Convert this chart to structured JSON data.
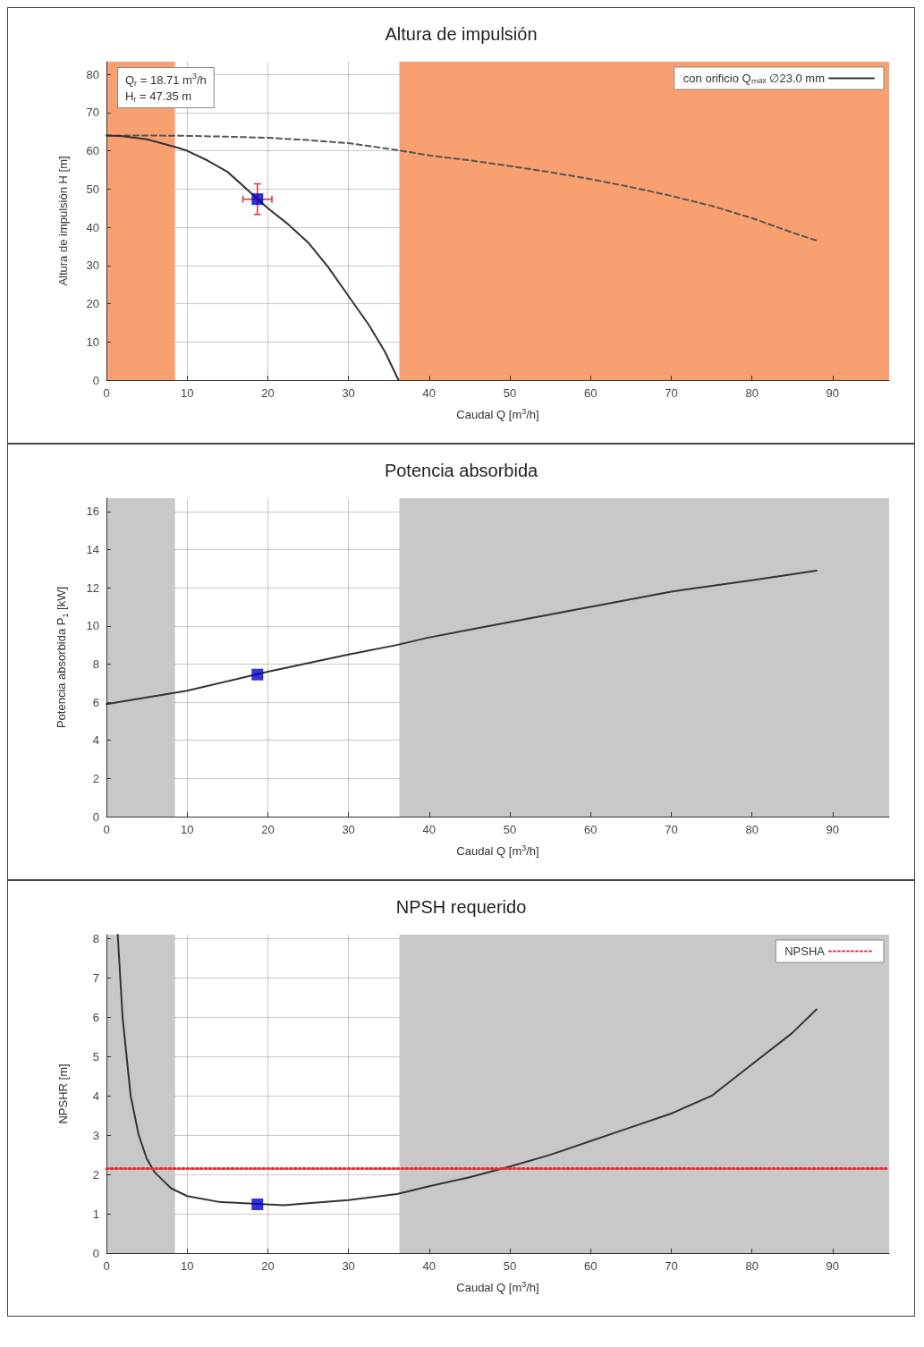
{
  "chart_data": [
    {
      "type": "line",
      "title": "Altura de impulsión",
      "xlabel": "Caudal Q [m$^{3}$/h]",
      "ylabel": "Altura de impulsión H [m]",
      "xlim": [
        0,
        97
      ],
      "ylim": [
        0,
        83.3
      ],
      "xticks": [
        0,
        10,
        20,
        30,
        40,
        50,
        60,
        70,
        80,
        90
      ],
      "yticks": [
        0,
        10,
        20,
        30,
        40,
        50,
        60,
        70,
        80
      ],
      "grid": true,
      "legend": "top right",
      "annotations": [
        "Q$_{r}$ = 18.71 m$^{3}$/h\nH$_{r}$ = 47.35 m"
      ],
      "bands": [
        {
          "axis": "x",
          "from": 0,
          "to": 8.5,
          "color": "#f9a070"
        },
        {
          "axis": "x",
          "from": 36.3,
          "to": 97,
          "color": "#f9a070"
        }
      ],
      "series": [
        {
          "color": "#555555",
          "line_style": "dashed",
          "marker": "none",
          "x": [
            0,
            5,
            10,
            15,
            20,
            25,
            30,
            36,
            40,
            45,
            50,
            55,
            60,
            65,
            70,
            75,
            80,
            85,
            88
          ],
          "values": [
            64,
            64,
            63.9,
            63.7,
            63.4,
            62.8,
            62,
            60.2,
            58.8,
            57.5,
            56,
            54.4,
            52.6,
            50.5,
            48.2,
            45.6,
            42.4,
            38.6,
            36.5
          ]
        },
        {
          "name": "con orificio Qₘₐₓ ∅23.0 mm",
          "color": "#333333",
          "line_style": "solid",
          "marker": "none",
          "x": [
            0,
            2,
            5,
            8.5,
            10,
            12.5,
            15,
            20,
            22.5,
            25,
            27.5,
            30,
            32.5,
            34.5,
            36.2
          ],
          "values": [
            64,
            63.8,
            63,
            61,
            60,
            57.5,
            54.5,
            45,
            40.8,
            36,
            29.5,
            22,
            14.5,
            7.5,
            0
          ]
        },
        {
          "type": "scatter",
          "color": "#0000cc",
          "marker": "square",
          "x": [
            18.71
          ],
          "values": [
            47.35
          ],
          "errors": [
            4
          ],
          "xerrors": [
            1.8
          ]
        }
      ]
    },
    {
      "type": "line",
      "title": "Potencia absorbida",
      "xlabel": "Caudal Q [m$^{3}$/h]",
      "ylabel": "Potencia absorbida P$_{1}$ [kW]",
      "xlim": [
        0,
        97
      ],
      "ylim": [
        0,
        16.7
      ],
      "xticks": [
        0,
        10,
        20,
        30,
        40,
        50,
        60,
        70,
        80,
        90
      ],
      "yticks": [
        0,
        2,
        4,
        6,
        8,
        10,
        12,
        14,
        16
      ],
      "grid": true,
      "bands": [
        {
          "axis": "x",
          "from": 0,
          "to": 8.5,
          "color": "#c8c8c8"
        },
        {
          "axis": "x",
          "from": 36.3,
          "to": 97,
          "color": "#c8c8c8"
        }
      ],
      "series": [
        {
          "color": "#333333",
          "line_style": "solid",
          "marker": "none",
          "x": [
            0,
            10,
            20,
            30,
            36,
            40,
            50,
            60,
            70,
            80,
            88
          ],
          "values": [
            5.9,
            6.6,
            7.6,
            8.5,
            9.0,
            9.4,
            10.2,
            11.0,
            11.8,
            12.4,
            12.9
          ]
        },
        {
          "type": "scatter",
          "color": "#0000cc",
          "marker": "square",
          "x": [
            18.71
          ],
          "values": [
            7.45
          ]
        }
      ]
    },
    {
      "type": "line",
      "title": "NPSH requerido",
      "xlabel": "Caudal Q [m$^{3}$/h]",
      "ylabel": "NPSHR [m]",
      "xlim": [
        0,
        97
      ],
      "ylim": [
        0,
        8.1
      ],
      "xticks": [
        0,
        10,
        20,
        30,
        40,
        50,
        60,
        70,
        80,
        90
      ],
      "yticks": [
        0,
        1,
        2,
        3,
        4,
        5,
        6,
        7,
        8
      ],
      "grid": true,
      "legend": "top right",
      "bands": [
        {
          "axis": "x",
          "from": 0,
          "to": 8.5,
          "color": "#c8c8c8"
        },
        {
          "axis": "x",
          "from": 36.3,
          "to": 97,
          "color": "#c8c8c8"
        }
      ],
      "series": [
        {
          "color": "#333333",
          "line_style": "solid",
          "marker": "none",
          "x": [
            1.4,
            2,
            3,
            4,
            5,
            6,
            8,
            10,
            14,
            22,
            25,
            30,
            36,
            40,
            45,
            50,
            55,
            60,
            65,
            70,
            75,
            80,
            85,
            88
          ],
          "values": [
            8.1,
            6,
            4,
            3,
            2.4,
            2.05,
            1.65,
            1.45,
            1.3,
            1.22,
            1.27,
            1.35,
            1.5,
            1.7,
            1.93,
            2.2,
            2.5,
            2.85,
            3.2,
            3.55,
            4.0,
            4.8,
            5.6,
            6.2
          ]
        },
        {
          "type": "scatter",
          "color": "#0000cc",
          "marker": "square",
          "x": [
            18.71
          ],
          "values": [
            1.24
          ]
        },
        {
          "name": "NPSHA",
          "color": "#e8303a",
          "line_style": "dotted",
          "marker": "none",
          "x": [
            0,
            97
          ],
          "values": [
            2.15,
            2.15
          ]
        }
      ]
    }
  ]
}
